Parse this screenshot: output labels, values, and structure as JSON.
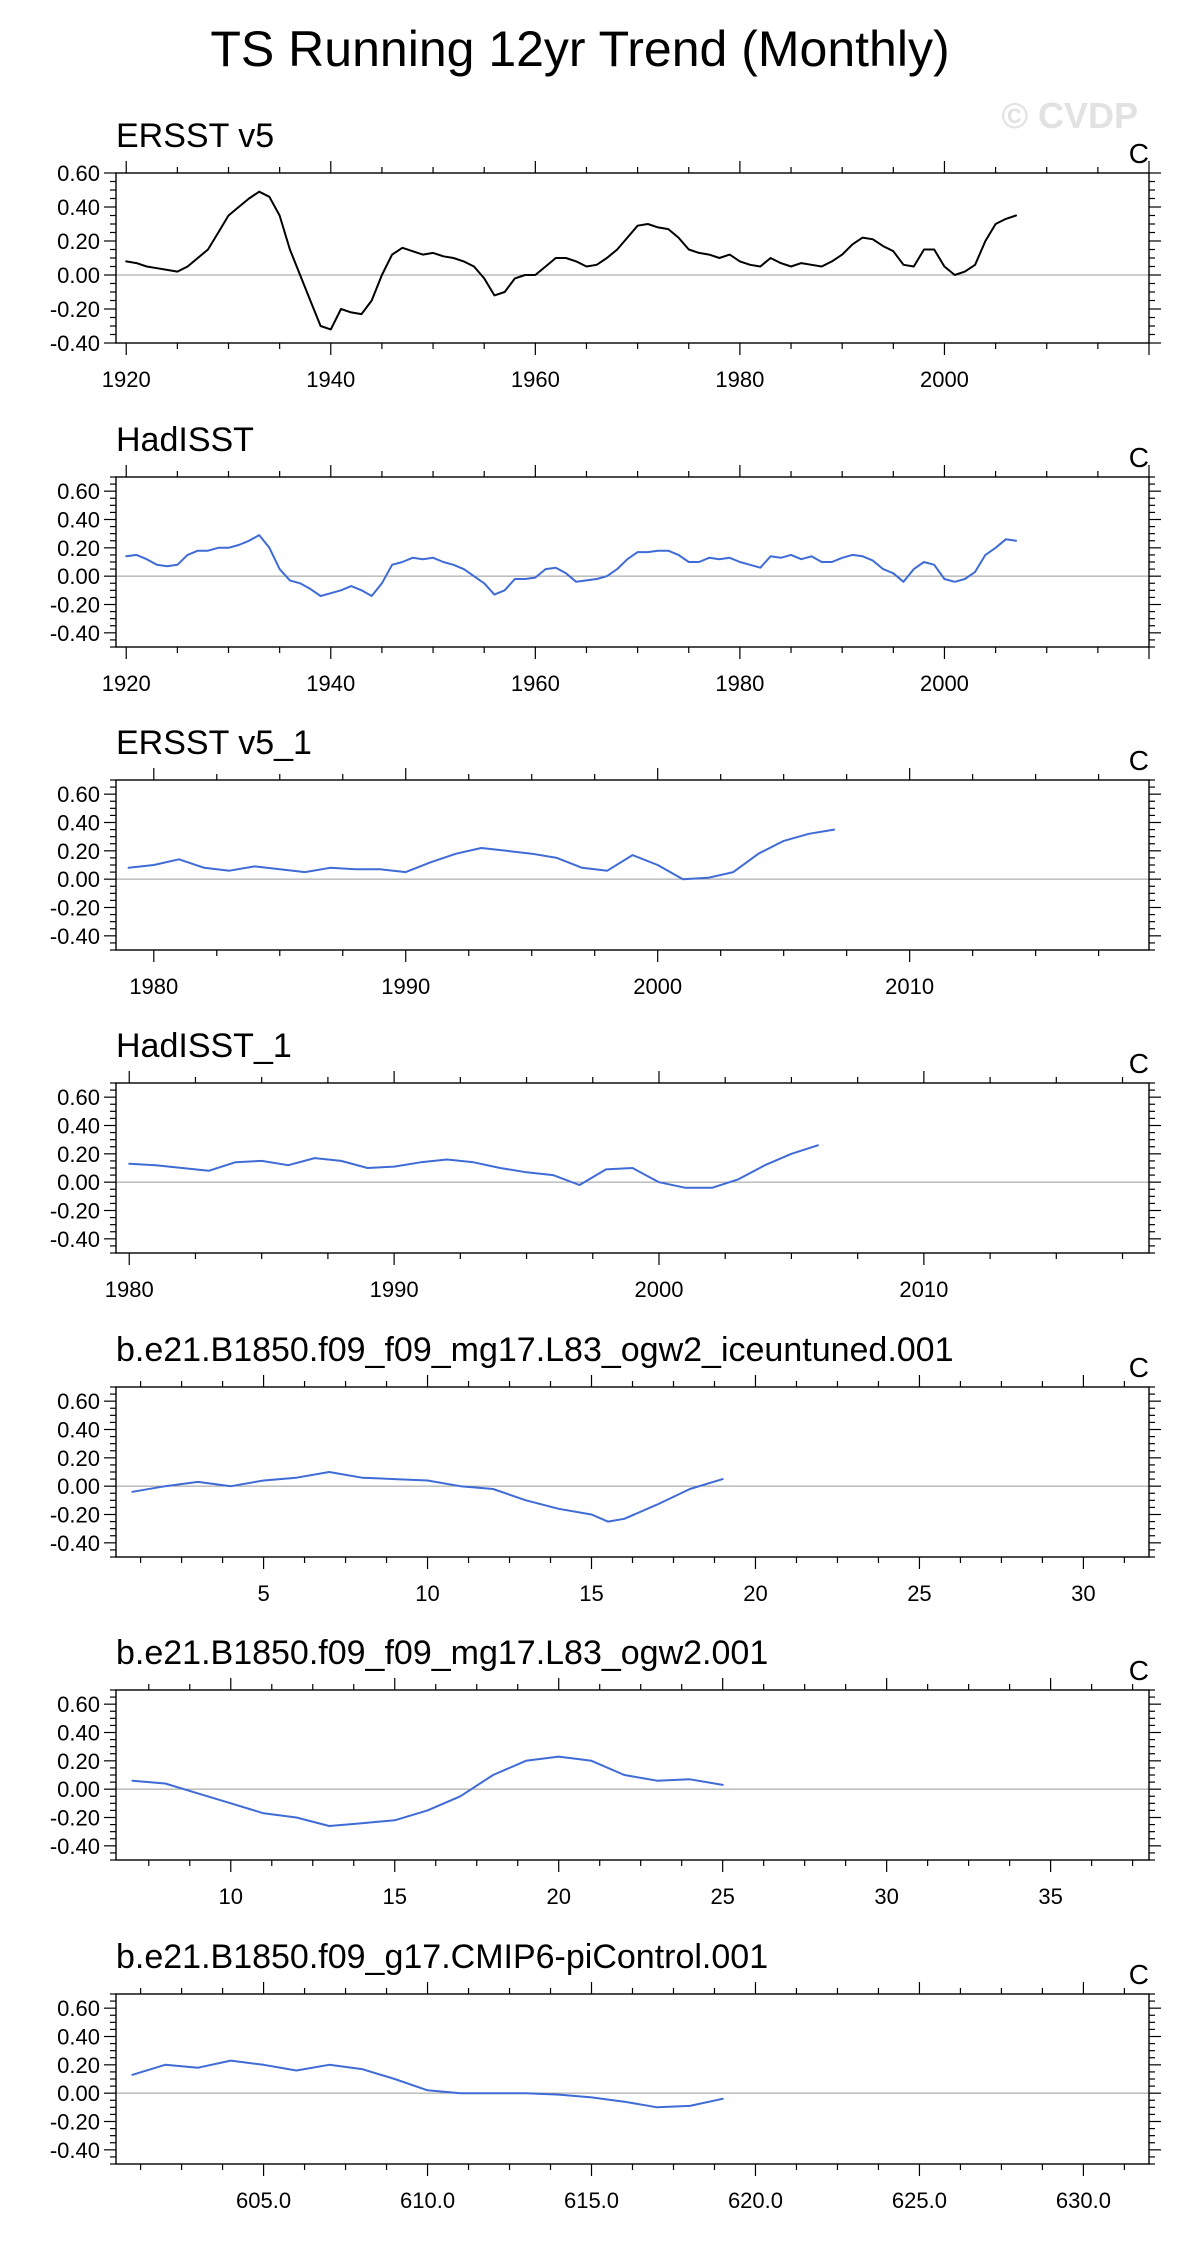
{
  "page": {
    "title": "TS Running 12yr Trend (Monthly)",
    "watermark": "© CVDP"
  },
  "chart_data": [
    {
      "type": "line",
      "title": "ERSST v5",
      "units": "C",
      "xlim": [
        1919,
        2020
      ],
      "ylim": [
        -0.4,
        0.6
      ],
      "xticks": [
        1920,
        1940,
        1960,
        1980,
        2000
      ],
      "xtick_labels": [
        "1920",
        "1940",
        "1960",
        "1980",
        "2000"
      ],
      "yticks": [
        -0.4,
        -0.2,
        0.0,
        0.2,
        0.4,
        0.6
      ],
      "ytick_labels": [
        "-0.40",
        "-0.20",
        "0.00",
        "0.20",
        "0.40",
        "0.60"
      ],
      "series": [
        {
          "color": "#000000",
          "x": [
            1920,
            1921,
            1922,
            1923,
            1924,
            1925,
            1926,
            1927,
            1928,
            1929,
            1930,
            1931,
            1932,
            1933,
            1934,
            1935,
            1936,
            1937,
            1938,
            1939,
            1940,
            1941,
            1942,
            1943,
            1944,
            1945,
            1946,
            1947,
            1948,
            1949,
            1950,
            1951,
            1952,
            1953,
            1954,
            1955,
            1956,
            1957,
            1958,
            1959,
            1960,
            1961,
            1962,
            1963,
            1964,
            1965,
            1966,
            1967,
            1968,
            1969,
            1970,
            1971,
            1972,
            1973,
            1974,
            1975,
            1976,
            1977,
            1978,
            1979,
            1980,
            1981,
            1982,
            1983,
            1984,
            1985,
            1986,
            1987,
            1988,
            1989,
            1990,
            1991,
            1992,
            1993,
            1994,
            1995,
            1996,
            1997,
            1998,
            1999,
            2000,
            2001,
            2002,
            2003,
            2004,
            2005,
            2006,
            2007
          ],
          "values": [
            0.08,
            0.07,
            0.05,
            0.04,
            0.03,
            0.02,
            0.05,
            0.1,
            0.15,
            0.25,
            0.35,
            0.4,
            0.45,
            0.49,
            0.46,
            0.35,
            0.15,
            0.0,
            -0.15,
            -0.3,
            -0.32,
            -0.2,
            -0.22,
            -0.23,
            -0.15,
            0.0,
            0.12,
            0.16,
            0.14,
            0.12,
            0.13,
            0.11,
            0.1,
            0.08,
            0.05,
            -0.02,
            -0.12,
            -0.1,
            -0.02,
            0.0,
            0.0,
            0.05,
            0.1,
            0.1,
            0.08,
            0.05,
            0.06,
            0.1,
            0.15,
            0.22,
            0.29,
            0.3,
            0.28,
            0.27,
            0.22,
            0.15,
            0.13,
            0.12,
            0.1,
            0.12,
            0.08,
            0.06,
            0.05,
            0.1,
            0.07,
            0.05,
            0.07,
            0.06,
            0.05,
            0.08,
            0.12,
            0.18,
            0.22,
            0.21,
            0.17,
            0.14,
            0.06,
            0.05,
            0.15,
            0.15,
            0.05,
            0.0,
            0.02,
            0.06,
            0.2,
            0.3,
            0.33,
            0.35
          ]
        }
      ]
    },
    {
      "type": "line",
      "title": "HadISST",
      "units": "C",
      "xlim": [
        1919,
        2020
      ],
      "ylim": [
        -0.5,
        0.7
      ],
      "xticks": [
        1920,
        1940,
        1960,
        1980,
        2000
      ],
      "xtick_labels": [
        "1920",
        "1940",
        "1960",
        "1980",
        "2000"
      ],
      "yticks": [
        -0.4,
        -0.2,
        0.0,
        0.2,
        0.4,
        0.6
      ],
      "ytick_labels": [
        "-0.40",
        "-0.20",
        "0.00",
        "0.20",
        "0.40",
        "0.60"
      ],
      "series": [
        {
          "color": "#3f6bd6",
          "x": [
            1920,
            1921,
            1922,
            1923,
            1924,
            1925,
            1926,
            1927,
            1928,
            1929,
            1930,
            1931,
            1932,
            1933,
            1934,
            1935,
            1936,
            1937,
            1938,
            1939,
            1940,
            1941,
            1942,
            1943,
            1944,
            1945,
            1946,
            1947,
            1948,
            1949,
            1950,
            1951,
            1952,
            1953,
            1954,
            1955,
            1956,
            1957,
            1958,
            1959,
            1960,
            1961,
            1962,
            1963,
            1964,
            1965,
            1966,
            1967,
            1968,
            1969,
            1970,
            1971,
            1972,
            1973,
            1974,
            1975,
            1976,
            1977,
            1978,
            1979,
            1980,
            1981,
            1982,
            1983,
            1984,
            1985,
            1986,
            1987,
            1988,
            1989,
            1990,
            1991,
            1992,
            1993,
            1994,
            1995,
            1996,
            1997,
            1998,
            1999,
            2000,
            2001,
            2002,
            2003,
            2004,
            2005,
            2006,
            2007
          ],
          "values": [
            0.14,
            0.15,
            0.12,
            0.08,
            0.07,
            0.08,
            0.15,
            0.18,
            0.18,
            0.2,
            0.2,
            0.22,
            0.25,
            0.29,
            0.2,
            0.05,
            -0.03,
            -0.05,
            -0.09,
            -0.14,
            -0.12,
            -0.1,
            -0.07,
            -0.1,
            -0.14,
            -0.05,
            0.08,
            0.1,
            0.13,
            0.12,
            0.13,
            0.1,
            0.08,
            0.05,
            0.0,
            -0.05,
            -0.13,
            -0.1,
            -0.02,
            -0.02,
            -0.01,
            0.05,
            0.06,
            0.02,
            -0.04,
            -0.03,
            -0.02,
            0.0,
            0.05,
            0.12,
            0.17,
            0.17,
            0.18,
            0.18,
            0.15,
            0.1,
            0.1,
            0.13,
            0.12,
            0.13,
            0.1,
            0.08,
            0.06,
            0.14,
            0.13,
            0.15,
            0.12,
            0.14,
            0.1,
            0.1,
            0.13,
            0.15,
            0.14,
            0.11,
            0.05,
            0.02,
            -0.04,
            0.05,
            0.1,
            0.08,
            -0.02,
            -0.04,
            -0.02,
            0.03,
            0.15,
            0.2,
            0.26,
            0.25
          ]
        }
      ]
    },
    {
      "type": "line",
      "title": "ERSST v5_1",
      "units": "C",
      "xlim": [
        1978.5,
        2019.5
      ],
      "ylim": [
        -0.5,
        0.7
      ],
      "xticks": [
        1980,
        1990,
        2000,
        2010
      ],
      "xtick_labels": [
        "1980",
        "1990",
        "2000",
        "2010"
      ],
      "yticks": [
        -0.4,
        -0.2,
        0.0,
        0.2,
        0.4,
        0.6
      ],
      "ytick_labels": [
        "-0.40",
        "-0.20",
        "0.00",
        "0.20",
        "0.40",
        "0.60"
      ],
      "series": [
        {
          "color": "#3f6bd6",
          "x": [
            1979,
            1980,
            1981,
            1982,
            1983,
            1984,
            1985,
            1986,
            1987,
            1988,
            1989,
            1990,
            1991,
            1992,
            1993,
            1994,
            1995,
            1996,
            1997,
            1998,
            1999,
            2000,
            2001,
            2002,
            2003,
            2004,
            2005,
            2006,
            2007
          ],
          "values": [
            0.08,
            0.1,
            0.14,
            0.08,
            0.06,
            0.09,
            0.07,
            0.05,
            0.08,
            0.07,
            0.07,
            0.05,
            0.12,
            0.18,
            0.22,
            0.2,
            0.18,
            0.15,
            0.08,
            0.06,
            0.17,
            0.1,
            0.0,
            0.01,
            0.05,
            0.18,
            0.27,
            0.32,
            0.35
          ]
        }
      ]
    },
    {
      "type": "line",
      "title": "HadISST_1",
      "units": "C",
      "xlim": [
        1979.5,
        2018.5
      ],
      "ylim": [
        -0.5,
        0.7
      ],
      "xticks": [
        1980,
        1990,
        2000,
        2010
      ],
      "xtick_labels": [
        "1980",
        "1990",
        "2000",
        "2010"
      ],
      "yticks": [
        -0.4,
        -0.2,
        0.0,
        0.2,
        0.4,
        0.6
      ],
      "ytick_labels": [
        "-0.40",
        "-0.20",
        "0.00",
        "0.20",
        "0.40",
        "0.60"
      ],
      "series": [
        {
          "color": "#3f6bd6",
          "x": [
            1980,
            1981,
            1982,
            1983,
            1984,
            1985,
            1986,
            1987,
            1988,
            1989,
            1990,
            1991,
            1992,
            1993,
            1994,
            1995,
            1996,
            1997,
            1998,
            1999,
            2000,
            2001,
            2002,
            2003,
            2004,
            2005,
            2006
          ],
          "values": [
            0.13,
            0.12,
            0.1,
            0.08,
            0.14,
            0.15,
            0.12,
            0.17,
            0.15,
            0.1,
            0.11,
            0.14,
            0.16,
            0.14,
            0.1,
            0.07,
            0.05,
            -0.02,
            0.09,
            0.1,
            0.0,
            -0.04,
            -0.04,
            0.02,
            0.12,
            0.2,
            0.26
          ]
        }
      ]
    },
    {
      "type": "line",
      "title": "b.e21.B1850.f09_f09_mg17.L83_ogw2_iceuntuned.001",
      "units": "C",
      "xlim": [
        0.5,
        32
      ],
      "ylim": [
        -0.5,
        0.7
      ],
      "xticks": [
        5,
        10,
        15,
        20,
        25,
        30
      ],
      "xtick_labels": [
        "5",
        "10",
        "15",
        "20",
        "25",
        "30"
      ],
      "yticks": [
        -0.4,
        -0.2,
        0.0,
        0.2,
        0.4,
        0.6
      ],
      "ytick_labels": [
        "-0.40",
        "-0.20",
        "0.00",
        "0.20",
        "0.40",
        "0.60"
      ],
      "series": [
        {
          "color": "#3f6bd6",
          "x": [
            1,
            2,
            3,
            4,
            5,
            6,
            7,
            8,
            9,
            10,
            11,
            12,
            13,
            14,
            15,
            15.5,
            16,
            17,
            18,
            19
          ],
          "values": [
            -0.04,
            0.0,
            0.03,
            0.0,
            0.04,
            0.06,
            0.1,
            0.06,
            0.05,
            0.04,
            0.0,
            -0.02,
            -0.1,
            -0.16,
            -0.2,
            -0.25,
            -0.23,
            -0.13,
            -0.02,
            0.05
          ]
        }
      ]
    },
    {
      "type": "line",
      "title": "b.e21.B1850.f09_f09_mg17.L83_ogw2.001",
      "units": "C",
      "xlim": [
        6.5,
        38
      ],
      "ylim": [
        -0.5,
        0.7
      ],
      "xticks": [
        10,
        15,
        20,
        25,
        30,
        35
      ],
      "xtick_labels": [
        "10",
        "15",
        "20",
        "25",
        "30",
        "35"
      ],
      "yticks": [
        -0.4,
        -0.2,
        0.0,
        0.2,
        0.4,
        0.6
      ],
      "ytick_labels": [
        "-0.40",
        "-0.20",
        "0.00",
        "0.20",
        "0.40",
        "0.60"
      ],
      "series": [
        {
          "color": "#3f6bd6",
          "x": [
            7,
            8,
            9,
            10,
            11,
            12,
            13,
            14,
            15,
            16,
            17,
            18,
            19,
            20,
            21,
            22,
            23,
            24,
            25
          ],
          "values": [
            0.06,
            0.04,
            -0.03,
            -0.1,
            -0.17,
            -0.2,
            -0.26,
            -0.24,
            -0.22,
            -0.15,
            -0.05,
            0.1,
            0.2,
            0.23,
            0.2,
            0.1,
            0.06,
            0.07,
            0.03
          ]
        }
      ]
    },
    {
      "type": "line",
      "title": "b.e21.B1850.f09_g17.CMIP6-piControl.001",
      "units": "C",
      "xlim": [
        600.5,
        632
      ],
      "ylim": [
        -0.5,
        0.7
      ],
      "xticks": [
        605.0,
        610.0,
        615.0,
        620.0,
        625.0,
        630.0
      ],
      "xtick_labels": [
        "605.0",
        "610.0",
        "615.0",
        "620.0",
        "625.0",
        "630.0"
      ],
      "yticks": [
        -0.4,
        -0.2,
        0.0,
        0.2,
        0.4,
        0.6
      ],
      "ytick_labels": [
        "-0.40",
        "-0.20",
        "0.00",
        "0.20",
        "0.40",
        "0.60"
      ],
      "series": [
        {
          "color": "#3f6bd6",
          "x": [
            601,
            602,
            603,
            604,
            605,
            606,
            607,
            608,
            609,
            610,
            611,
            612,
            613,
            614,
            615,
            616,
            617,
            618,
            619
          ],
          "values": [
            0.13,
            0.2,
            0.18,
            0.23,
            0.2,
            0.16,
            0.2,
            0.17,
            0.1,
            0.02,
            0.0,
            0.0,
            0.0,
            -0.01,
            -0.03,
            -0.06,
            -0.1,
            -0.09,
            -0.04
          ]
        }
      ]
    }
  ]
}
